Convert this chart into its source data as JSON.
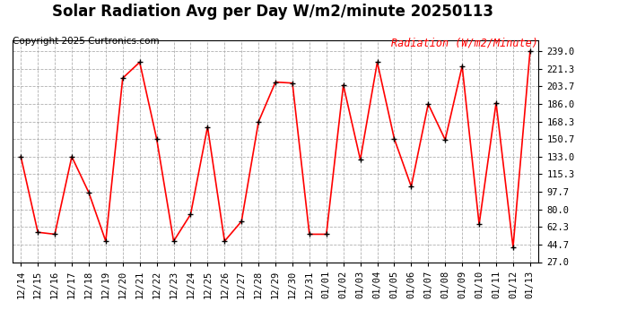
{
  "title": "Solar Radiation Avg per Day W/m2/minute 20250113",
  "copyright": "Copyright 2025 Curtronics.com",
  "legend_label": "Radiation (W/m2/Minute)",
  "dates": [
    "12/14",
    "12/15",
    "12/16",
    "12/17",
    "12/18",
    "12/19",
    "12/20",
    "12/21",
    "12/22",
    "12/23",
    "12/24",
    "12/25",
    "12/26",
    "12/27",
    "12/28",
    "12/29",
    "12/30",
    "12/31",
    "01/01",
    "01/02",
    "01/03",
    "01/04",
    "01/05",
    "01/06",
    "01/07",
    "01/08",
    "01/09",
    "01/10",
    "01/11",
    "01/12",
    "01/13"
  ],
  "values": [
    133,
    57,
    55,
    133,
    97,
    48,
    212,
    228,
    151,
    48,
    75,
    163,
    48,
    68,
    168,
    208,
    207,
    55,
    55,
    205,
    130,
    228,
    151,
    103,
    186,
    150,
    224,
    65,
    187,
    42,
    239
  ],
  "line_color": "red",
  "marker_color": "black",
  "background_color": "#ffffff",
  "grid_color": "#b0b0b0",
  "ylim_min": 27.0,
  "ylim_max": 250.0,
  "yticks": [
    27.0,
    44.7,
    62.3,
    80.0,
    97.7,
    115.3,
    133.0,
    150.7,
    168.3,
    186.0,
    203.7,
    221.3,
    239.0
  ],
  "title_fontsize": 12,
  "copyright_fontsize": 7.5,
  "legend_fontsize": 8.5,
  "tick_fontsize": 7.5
}
